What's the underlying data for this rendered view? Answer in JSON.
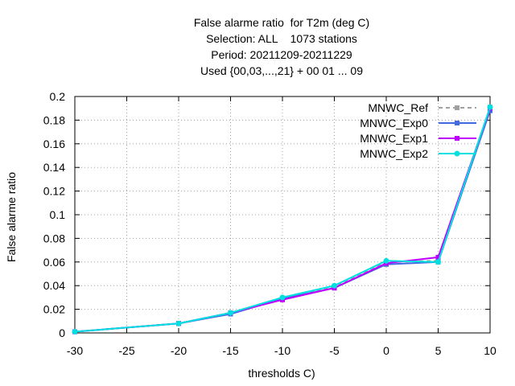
{
  "chart_data": {
    "type": "line",
    "title_lines": [
      "False alarme ratio  for T2m (deg C)",
      "Selection: ALL    1073 stations",
      "Period: 20211209-20211229",
      "Used {00,03,...,21} + 00 01 ... 09"
    ],
    "xlabel": "thresholds C)",
    "ylabel": "False alarme ratio",
    "xlim": [
      -30,
      10
    ],
    "ylim": [
      0,
      0.2
    ],
    "xticks": [
      "-30",
      "-25",
      "-20",
      "-15",
      "-10",
      "-5",
      "0",
      "5",
      "10"
    ],
    "yticks": [
      "0",
      "0.02",
      "0.04",
      "0.06",
      "0.08",
      "0.1",
      "0.12",
      "0.14",
      "0.16",
      "0.18",
      "0.2"
    ],
    "grid": true,
    "legend_position": "top-right",
    "x": [
      -30,
      -20,
      -15,
      -10,
      -5,
      0,
      5,
      10
    ],
    "series": [
      {
        "name": "MNWC_Ref",
        "color": "#a0a0a0",
        "dashed": true,
        "marker": "square",
        "values": [
          0.001,
          0.008,
          0.017,
          0.029,
          0.039,
          0.06,
          0.061,
          0.191
        ]
      },
      {
        "name": "MNWC_Exp0",
        "color": "#4169e1",
        "dashed": false,
        "marker": "square",
        "values": [
          0.001,
          0.008,
          0.016,
          0.029,
          0.038,
          0.058,
          0.06,
          0.188
        ]
      },
      {
        "name": "MNWC_Exp1",
        "color": "#c000ff",
        "dashed": false,
        "marker": "square",
        "values": [
          0.001,
          0.008,
          0.017,
          0.028,
          0.038,
          0.059,
          0.064,
          0.19
        ]
      },
      {
        "name": "MNWC_Exp2",
        "color": "#00e0e0",
        "dashed": false,
        "marker": "circle",
        "values": [
          0.001,
          0.008,
          0.017,
          0.03,
          0.04,
          0.061,
          0.06,
          0.191
        ]
      }
    ]
  }
}
